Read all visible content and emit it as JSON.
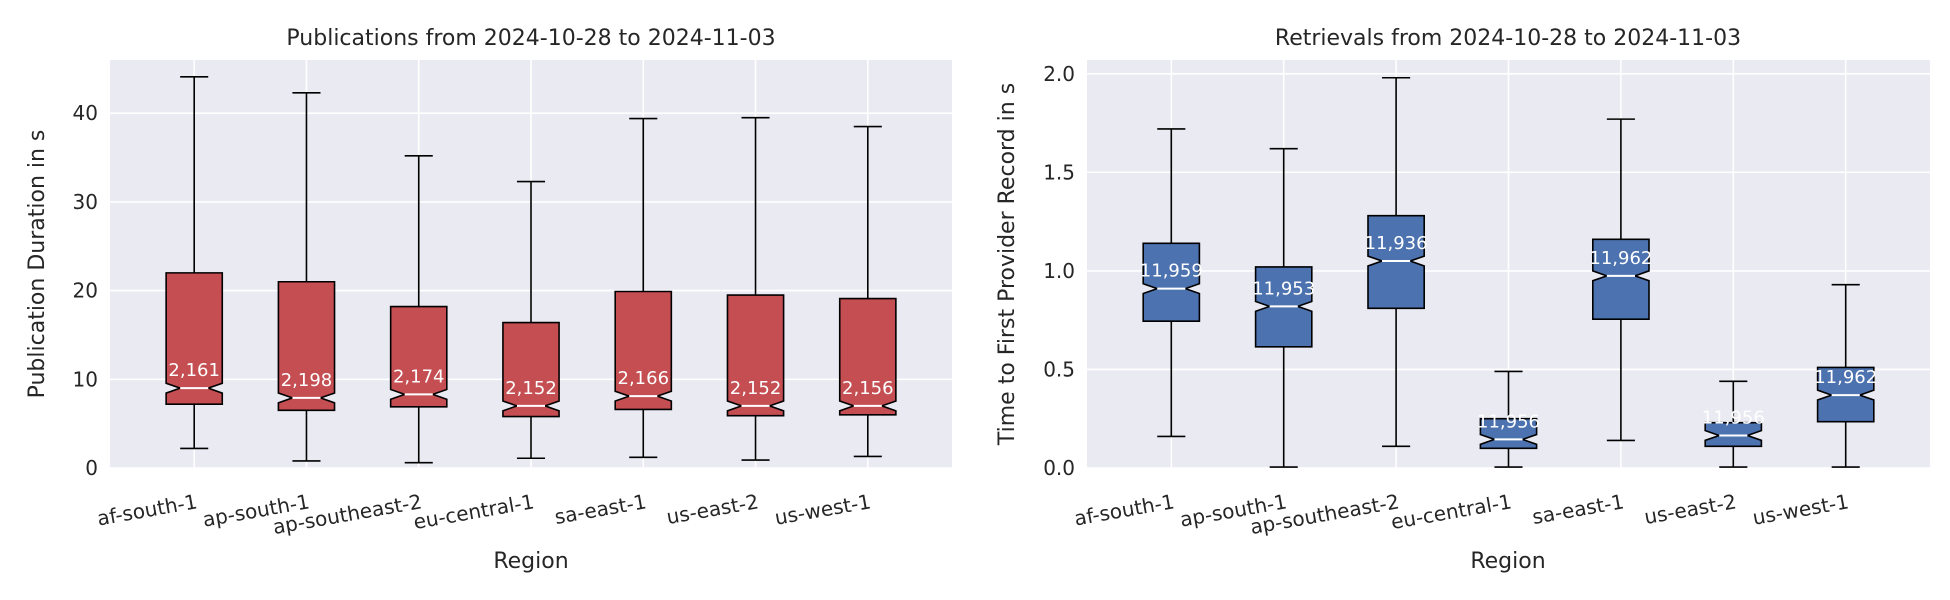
{
  "chart_data": [
    {
      "type": "box",
      "title": "Publications from 2024-10-28 to 2024-11-03",
      "xlabel": "Region",
      "ylabel": "Publication Duration in s",
      "ylim": [
        0,
        46
      ],
      "yticks": [
        0,
        10,
        20,
        30,
        40
      ],
      "ytick_labels": [
        "0",
        "10",
        "20",
        "30",
        "40"
      ],
      "grid": true,
      "notched": true,
      "box_color": "#c44e52",
      "categories": [
        "af-south-1",
        "ap-south-1",
        "ap-southeast-2",
        "eu-central-1",
        "sa-east-1",
        "us-east-2",
        "us-west-1"
      ],
      "boxes": [
        {
          "whislo": 2.2,
          "q1": 7.2,
          "med": 9.0,
          "q3": 22.0,
          "whishi": 44.1,
          "count": "2,161"
        },
        {
          "whislo": 0.8,
          "q1": 6.5,
          "med": 7.9,
          "q3": 21.0,
          "whishi": 42.3,
          "count": "2,198"
        },
        {
          "whislo": 0.6,
          "q1": 6.9,
          "med": 8.3,
          "q3": 18.2,
          "whishi": 35.2,
          "count": "2,174"
        },
        {
          "whislo": 1.1,
          "q1": 5.8,
          "med": 7.0,
          "q3": 16.4,
          "whishi": 32.3,
          "count": "2,152"
        },
        {
          "whislo": 1.2,
          "q1": 6.6,
          "med": 8.1,
          "q3": 19.9,
          "whishi": 39.4,
          "count": "2,166"
        },
        {
          "whislo": 0.9,
          "q1": 5.9,
          "med": 7.0,
          "q3": 19.5,
          "whishi": 39.5,
          "count": "2,152"
        },
        {
          "whislo": 1.3,
          "q1": 6.0,
          "med": 7.0,
          "q3": 19.1,
          "whishi": 38.5,
          "count": "2,156"
        }
      ]
    },
    {
      "type": "box",
      "title": "Retrievals from 2024-10-28 to 2024-11-03",
      "xlabel": "Region",
      "ylabel": "Time to First Provider Record in s",
      "ylim": [
        0,
        2.07
      ],
      "yticks": [
        0,
        0.5,
        1.0,
        1.5,
        2.0
      ],
      "ytick_labels": [
        "0.0",
        "0.5",
        "1.0",
        "1.5",
        "2.0"
      ],
      "grid": true,
      "notched": true,
      "box_color": "#4c72b0",
      "categories": [
        "af-south-1",
        "ap-south-1",
        "ap-southeast-2",
        "eu-central-1",
        "sa-east-1",
        "us-east-2",
        "us-west-1"
      ],
      "boxes": [
        {
          "whislo": 0.16,
          "q1": 0.745,
          "med": 0.91,
          "q3": 1.14,
          "whishi": 1.72,
          "count": "11,959"
        },
        {
          "whislo": 0.005,
          "q1": 0.615,
          "med": 0.82,
          "q3": 1.02,
          "whishi": 1.62,
          "count": "11,953"
        },
        {
          "whislo": 0.11,
          "q1": 0.81,
          "med": 1.05,
          "q3": 1.28,
          "whishi": 1.98,
          "count": "11,936"
        },
        {
          "whislo": 0.005,
          "q1": 0.1,
          "med": 0.145,
          "q3": 0.25,
          "whishi": 0.49,
          "count": "11,956"
        },
        {
          "whislo": 0.14,
          "q1": 0.755,
          "med": 0.975,
          "q3": 1.16,
          "whishi": 1.77,
          "count": "11,962"
        },
        {
          "whislo": 0.005,
          "q1": 0.11,
          "med": 0.165,
          "q3": 0.23,
          "whishi": 0.44,
          "count": "11,956"
        },
        {
          "whislo": 0.005,
          "q1": 0.235,
          "med": 0.37,
          "q3": 0.51,
          "whishi": 0.93,
          "count": "11,962"
        }
      ]
    }
  ]
}
